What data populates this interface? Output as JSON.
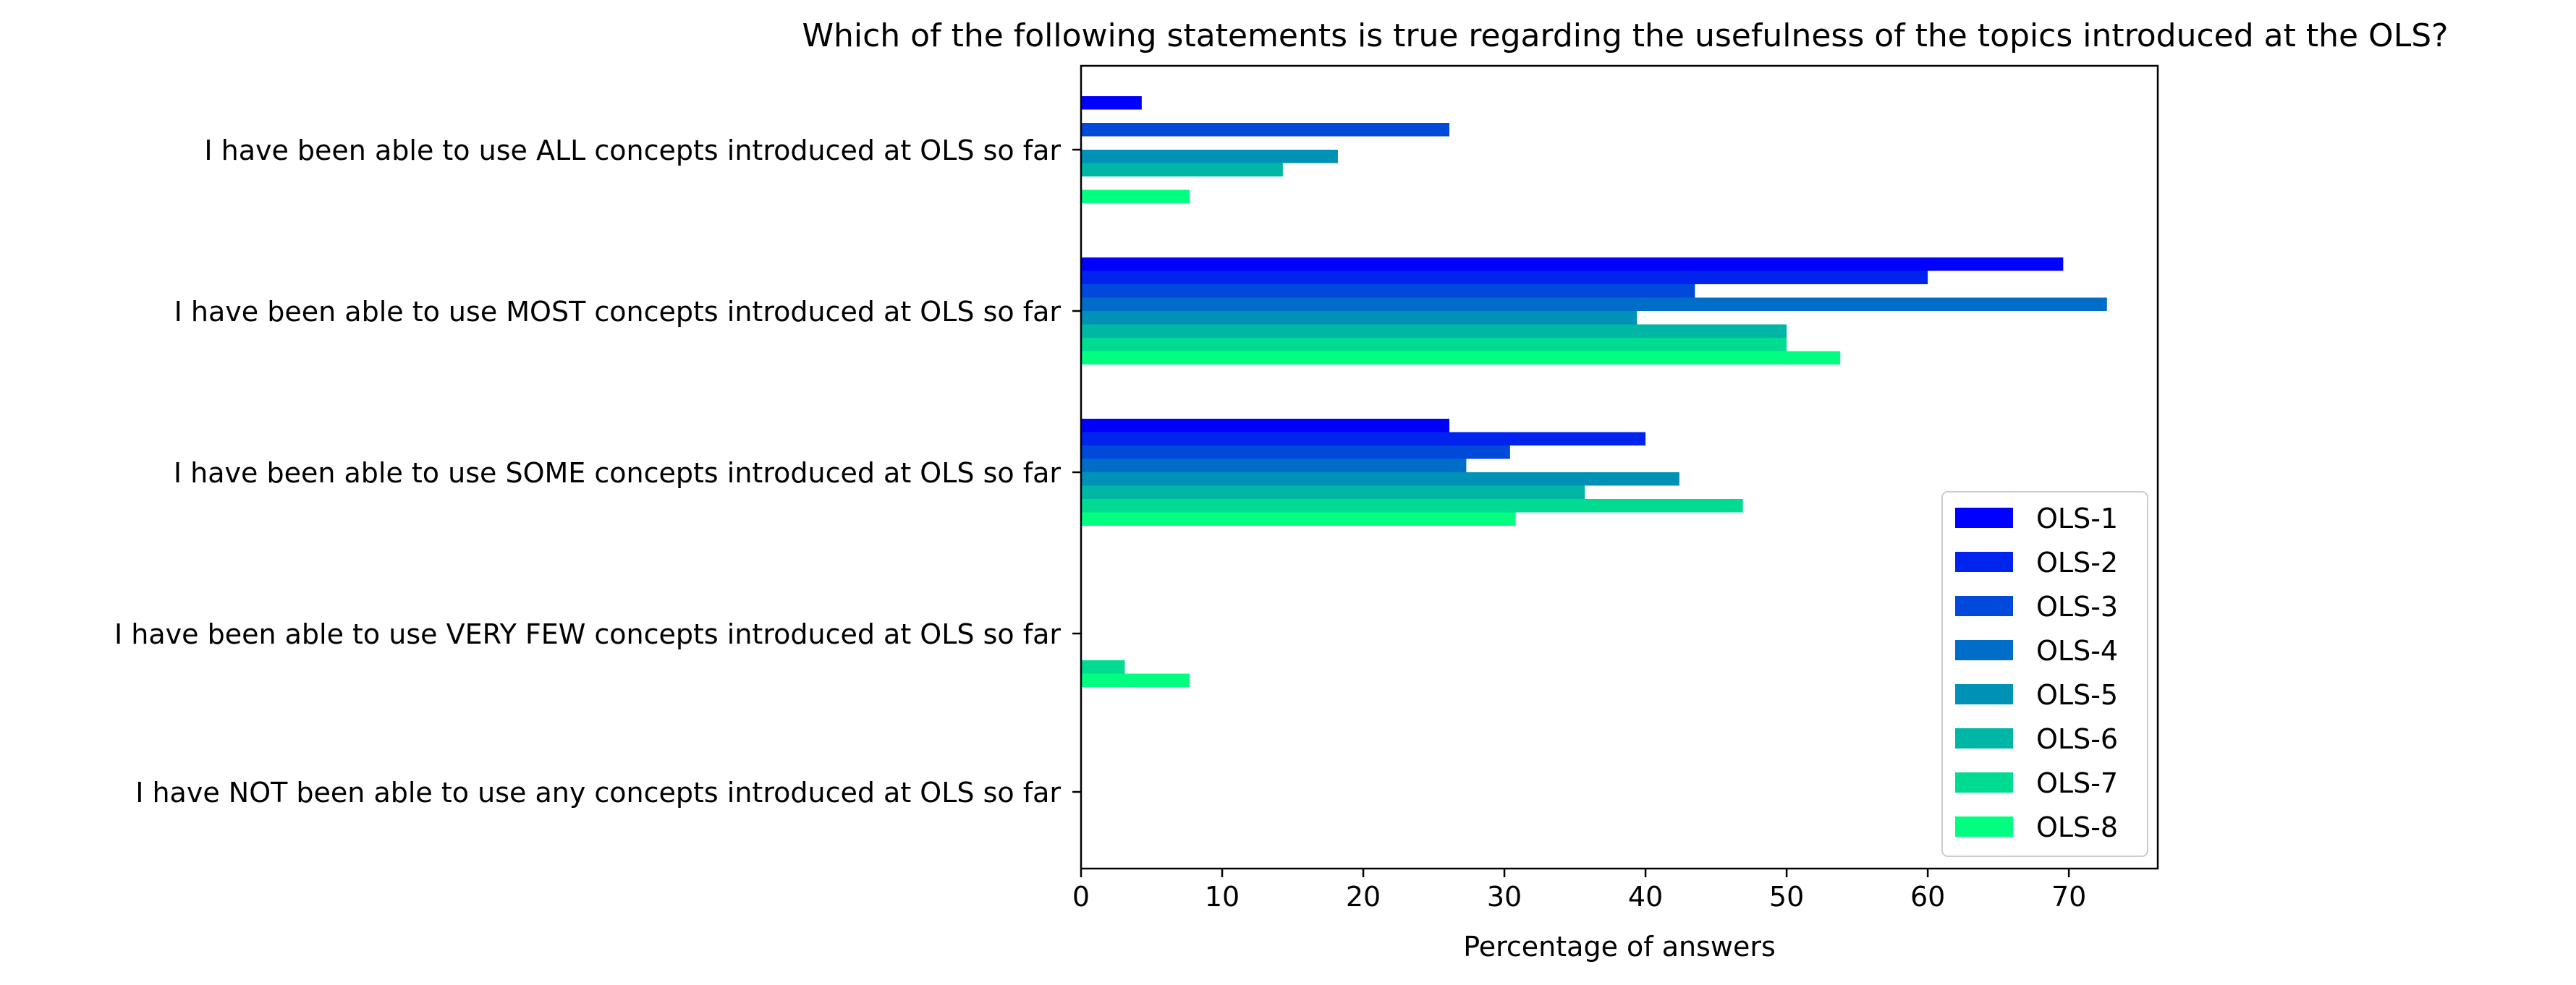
{
  "chart_data": {
    "type": "bar",
    "orientation": "horizontal",
    "title": "Which of the following statements is true regarding the usefulness of the topics introduced at the OLS?",
    "xlabel": "Percentage of answers",
    "ylabel": "",
    "xlim": [
      0,
      76.3
    ],
    "xticks": [
      0,
      10,
      20,
      30,
      40,
      50,
      60,
      70
    ],
    "grid": false,
    "legend_position": "lower-right",
    "categories": [
      "I have been able to use ALL concepts introduced at OLS so far",
      "I have been able to use MOST concepts introduced at OLS so far",
      "I have been able to use SOME concepts introduced at OLS so far",
      "I have been able to use VERY FEW concepts introduced at OLS so far",
      "I have NOT been able to use any concepts introduced at OLS so far"
    ],
    "series": [
      {
        "name": "OLS-1",
        "color": "#0000ff",
        "values": [
          4.3,
          69.6,
          26.1,
          0,
          0
        ]
      },
      {
        "name": "OLS-2",
        "color": "#0024ed",
        "values": [
          0,
          60.0,
          40.0,
          0,
          0
        ]
      },
      {
        "name": "OLS-3",
        "color": "#0049db",
        "values": [
          26.1,
          43.5,
          30.4,
          0,
          0
        ]
      },
      {
        "name": "OLS-4",
        "color": "#006dc9",
        "values": [
          0,
          72.7,
          27.3,
          0,
          0
        ]
      },
      {
        "name": "OLS-5",
        "color": "#0092b6",
        "values": [
          18.2,
          39.4,
          42.4,
          0,
          0
        ]
      },
      {
        "name": "OLS-6",
        "color": "#00b6a4",
        "values": [
          14.3,
          50.0,
          35.7,
          0,
          0
        ]
      },
      {
        "name": "OLS-7",
        "color": "#00db92",
        "values": [
          0,
          50.0,
          46.9,
          3.1,
          0
        ]
      },
      {
        "name": "OLS-8",
        "color": "#00ff80",
        "values": [
          7.7,
          53.8,
          30.8,
          7.7,
          0
        ]
      }
    ]
  }
}
